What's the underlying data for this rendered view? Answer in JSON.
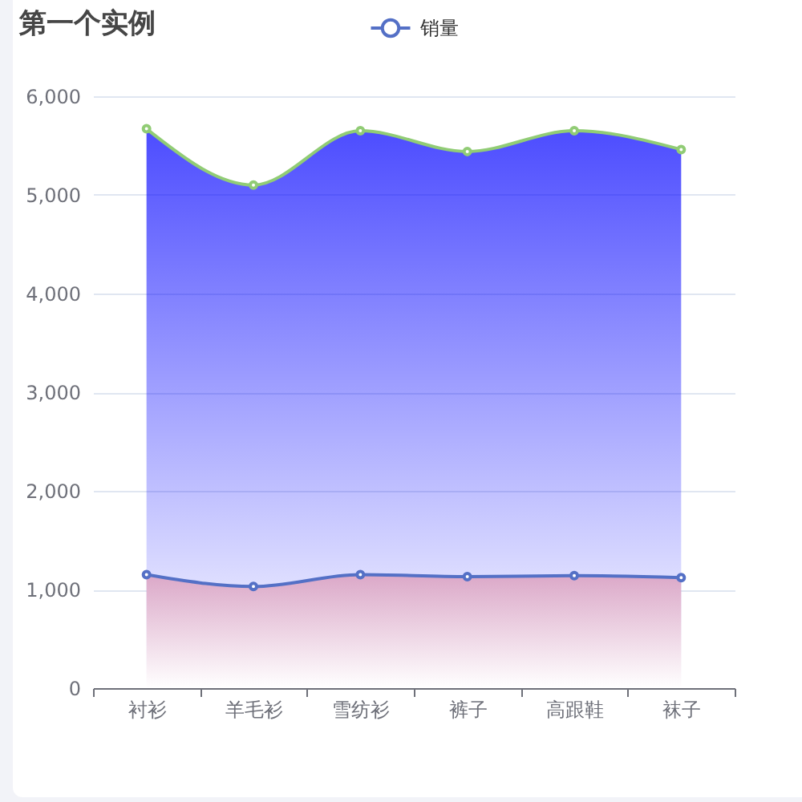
{
  "chart_data": {
    "type": "area",
    "title": "第一个实例",
    "categories": [
      "衬衫",
      "羊毛衫",
      "雪纺衫",
      "裤子",
      "高跟鞋",
      "袜子"
    ],
    "series": [
      {
        "name": "销量",
        "color": "#5470c6",
        "values": [
          1150,
          1030,
          1150,
          1130,
          1140,
          1120
        ]
      },
      {
        "color": "#91cc75",
        "values": [
          5670,
          5100,
          5650,
          5440,
          5650,
          5460
        ]
      }
    ],
    "ylim": [
      0,
      6000
    ],
    "yticks": [
      0,
      {
        "value": 1000,
        "label": "1,000"
      },
      {
        "value": 2000,
        "label": "2,000"
      },
      {
        "value": 3000,
        "label": "3,000"
      },
      {
        "value": 4000,
        "label": "4,000"
      },
      {
        "value": 5000,
        "label": "5,000"
      },
      {
        "value": 6000,
        "label": "6,000"
      }
    ],
    "grid": "y",
    "legend": "top",
    "marker": "circle"
  }
}
